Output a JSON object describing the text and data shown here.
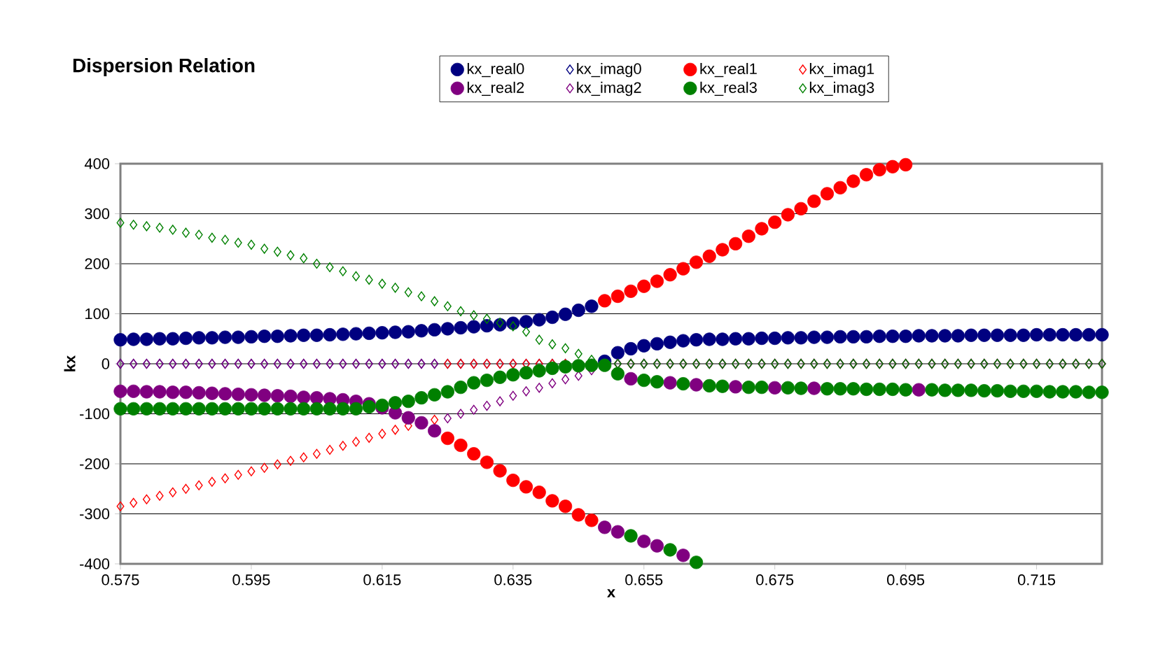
{
  "chart_data": {
    "type": "scatter",
    "title": "Dispersion Relation",
    "xlabel": "x",
    "ylabel": "kx",
    "x": [
      0.575,
      0.577,
      0.579,
      0.581,
      0.583,
      0.585,
      0.587,
      0.589,
      0.591,
      0.593,
      0.595,
      0.597,
      0.599,
      0.601,
      0.603,
      0.605,
      0.607,
      0.609,
      0.611,
      0.613,
      0.615,
      0.617,
      0.619,
      0.621,
      0.623,
      0.625,
      0.627,
      0.629,
      0.631,
      0.633,
      0.635,
      0.637,
      0.639,
      0.641,
      0.643,
      0.645,
      0.647,
      0.649,
      0.651,
      0.653,
      0.655,
      0.657,
      0.659,
      0.661,
      0.663,
      0.665,
      0.667,
      0.669,
      0.671,
      0.673,
      0.675,
      0.677,
      0.679,
      0.681,
      0.683,
      0.685,
      0.687,
      0.689,
      0.691,
      0.693,
      0.695,
      0.697,
      0.699,
      0.701,
      0.703,
      0.705,
      0.707,
      0.709,
      0.711,
      0.713,
      0.715,
      0.717,
      0.719,
      0.721,
      0.723,
      0.725
    ],
    "series": [
      {
        "name": "kx_real0",
        "color": "#000080",
        "marker": "circle",
        "values": [
          48,
          49,
          49,
          50,
          50,
          51,
          52,
          52,
          53,
          53,
          54,
          55,
          55,
          56,
          57,
          57,
          58,
          59,
          60,
          61,
          62,
          63,
          64,
          66,
          68,
          70,
          72,
          74,
          76,
          78,
          81,
          84,
          88,
          93,
          99,
          107,
          115,
          5,
          22,
          30,
          36,
          40,
          43,
          46,
          48,
          49,
          49,
          50,
          50,
          51,
          51,
          52,
          52,
          53,
          53,
          54,
          54,
          54,
          55,
          55,
          55,
          56,
          56,
          56,
          56,
          57,
          57,
          57,
          57,
          57,
          58,
          58,
          58,
          58,
          58,
          58
        ]
      },
      {
        "name": "kx_imag0",
        "color": "#000080",
        "marker": "diamond",
        "values": [
          0,
          0,
          0,
          0,
          0,
          0,
          0,
          0,
          0,
          0,
          0,
          0,
          0,
          0,
          0,
          0,
          0,
          0,
          0,
          0,
          0,
          0,
          0,
          0,
          0,
          0,
          0,
          0,
          0,
          0,
          0,
          0,
          0,
          0,
          0,
          null,
          null,
          null,
          0,
          0,
          0,
          0,
          0,
          0,
          0,
          0,
          0,
          0,
          0,
          0,
          0,
          0,
          0,
          0,
          0,
          0,
          0,
          0,
          0,
          0,
          0,
          0,
          0,
          0,
          0,
          0,
          0,
          0,
          0,
          0,
          0,
          0,
          0,
          0,
          0,
          0
        ]
      },
      {
        "name": "kx_real1",
        "color": "#ff0000",
        "marker": "circle",
        "values": [
          null,
          null,
          null,
          null,
          null,
          null,
          null,
          null,
          null,
          null,
          null,
          null,
          null,
          null,
          null,
          null,
          null,
          null,
          null,
          null,
          null,
          null,
          null,
          null,
          null,
          -149,
          -163,
          -180,
          -197,
          -214,
          -233,
          -246,
          -257,
          -274,
          -285,
          -302,
          -313,
          126,
          135,
          145,
          155,
          165,
          178,
          190,
          203,
          215,
          228,
          240,
          255,
          270,
          283,
          298,
          310,
          325,
          340,
          352,
          365,
          378,
          388,
          394,
          398,
          null,
          null,
          null,
          null,
          null,
          null,
          null,
          null,
          null,
          null,
          null,
          null,
          null,
          null,
          null
        ]
      },
      {
        "name": "kx_imag1",
        "color": "#ff0000",
        "marker": "diamond",
        "values": [
          -285,
          -278,
          -271,
          -264,
          -257,
          -250,
          -243,
          -236,
          -229,
          -222,
          -215,
          -208,
          -201,
          -194,
          -187,
          -180,
          -172,
          -164,
          -156,
          -148,
          -140,
          -132,
          -124,
          null,
          -112,
          0,
          0,
          0,
          0,
          0,
          0,
          0,
          0,
          0,
          0,
          null,
          null,
          null,
          0,
          0,
          0,
          0,
          0,
          0,
          0,
          0,
          0,
          0,
          0,
          0,
          0,
          0,
          0,
          0,
          0,
          0,
          0,
          0,
          0,
          0,
          0,
          0,
          0,
          0,
          0,
          0,
          0,
          0,
          0,
          0,
          0,
          0,
          0,
          0,
          0,
          0
        ]
      },
      {
        "name": "kx_real2",
        "color": "#800080",
        "marker": "circle",
        "values": [
          -55,
          -55,
          -56,
          -56,
          -57,
          -57,
          -58,
          -59,
          -60,
          -61,
          -62,
          -63,
          -64,
          -65,
          -67,
          -68,
          -70,
          -72,
          -75,
          -80,
          -88,
          -98,
          -108,
          -118,
          -134,
          null,
          null,
          null,
          null,
          null,
          null,
          null,
          null,
          null,
          null,
          null,
          null,
          -327,
          -336,
          -30,
          -355,
          -364,
          -38,
          -383,
          -42,
          null,
          null,
          -46,
          null,
          null,
          -48,
          null,
          null,
          -49,
          null,
          null,
          null,
          null,
          null,
          null,
          null,
          -52,
          null,
          null,
          null,
          null,
          null,
          null,
          null,
          null,
          null,
          null,
          null,
          null,
          null,
          null
        ]
      },
      {
        "name": "kx_imag2",
        "color": "#800080",
        "marker": "diamond",
        "values": [
          0,
          0,
          0,
          0,
          0,
          0,
          0,
          0,
          0,
          0,
          0,
          0,
          0,
          0,
          0,
          0,
          0,
          0,
          0,
          0,
          0,
          0,
          0,
          0,
          0,
          -109,
          -100,
          -92,
          -84,
          -75,
          -64,
          -55,
          -48,
          -39,
          -31,
          -24,
          -13,
          null,
          0,
          0,
          0,
          0,
          0,
          0,
          0,
          0,
          0,
          0,
          0,
          0,
          0,
          0,
          0,
          0,
          0,
          0,
          0,
          0,
          0,
          0,
          0,
          0,
          0,
          0,
          0,
          0,
          0,
          0,
          0,
          0,
          0,
          0,
          0,
          0,
          0,
          0
        ]
      },
      {
        "name": "kx_real3",
        "color": "#008000",
        "marker": "circle",
        "values": [
          -90,
          -90,
          -90,
          -90,
          -90,
          -90,
          -90,
          -90,
          -90,
          -90,
          -90,
          -90,
          -90,
          -90,
          -90,
          -90,
          -90,
          -90,
          -90,
          -86,
          -83,
          -78,
          -75,
          -68,
          -62,
          -56,
          -47,
          -38,
          -33,
          -27,
          -22,
          -18,
          -14,
          -9,
          -6,
          -4,
          -3,
          -3,
          -20,
          -344,
          -33,
          -36,
          -372,
          -40,
          -397,
          -44,
          -45,
          null,
          -47,
          -47,
          null,
          -48,
          -49,
          null,
          -50,
          -50,
          -50,
          -51,
          -51,
          -51,
          -52,
          null,
          -52,
          -53,
          -53,
          -53,
          -54,
          -54,
          -55,
          -55,
          -55,
          -56,
          -56,
          -56,
          -57,
          -57
        ]
      },
      {
        "name": "kx_imag3",
        "color": "#008000",
        "marker": "diamond",
        "values": [
          282,
          278,
          275,
          272,
          268,
          262,
          258,
          252,
          248,
          242,
          238,
          230,
          224,
          217,
          211,
          200,
          193,
          185,
          175,
          168,
          160,
          152,
          143,
          135,
          125,
          115,
          105,
          97,
          90,
          82,
          75,
          64,
          48,
          39,
          31,
          20,
          8,
          null,
          0,
          0,
          0,
          0,
          0,
          0,
          0,
          0,
          0,
          0,
          0,
          0,
          0,
          0,
          0,
          0,
          0,
          0,
          0,
          0,
          0,
          0,
          0,
          0,
          0,
          0,
          0,
          0,
          0,
          0,
          0,
          0,
          0,
          0,
          0,
          0,
          0,
          0
        ]
      }
    ],
    "xlim": [
      0.575,
      0.725
    ],
    "xticks": [
      0.575,
      0.595,
      0.615,
      0.635,
      0.655,
      0.675,
      0.695,
      0.715
    ],
    "ylim": [
      -400,
      400
    ],
    "yticks": [
      -400,
      -300,
      -200,
      -100,
      0,
      100,
      200,
      300,
      400
    ],
    "grid": "y",
    "legend": "top"
  }
}
